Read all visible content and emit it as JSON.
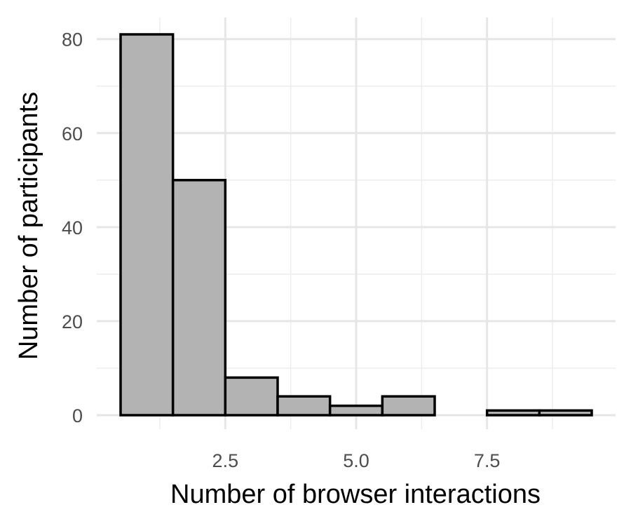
{
  "chart_data": {
    "type": "bar",
    "xlabel": "Number of browser interactions",
    "ylabel": "Number of participants",
    "title": "",
    "bin_centers": [
      1,
      2,
      3,
      4,
      5,
      6,
      7,
      8,
      9
    ],
    "bin_width": 1,
    "values": [
      81,
      50,
      8,
      4,
      2,
      4,
      0,
      1,
      1
    ],
    "xlim": [
      0.5,
      9.5
    ],
    "ylim": [
      0,
      81
    ],
    "x_ticks": [
      2.5,
      5.0,
      7.5
    ],
    "x_tick_labels": [
      "2.5",
      "5.0",
      "7.5"
    ],
    "y_ticks": [
      0,
      20,
      40,
      60,
      80
    ],
    "y_tick_labels": [
      "0",
      "20",
      "40",
      "60",
      "80"
    ],
    "grid": true,
    "legend": "none",
    "colors": {
      "bar_fill": "#b3b3b3",
      "bar_stroke": "#000000",
      "grid_major": "#e6e6e6",
      "grid_minor": "#eeeeee",
      "tick_text": "#4d4d4d"
    }
  }
}
